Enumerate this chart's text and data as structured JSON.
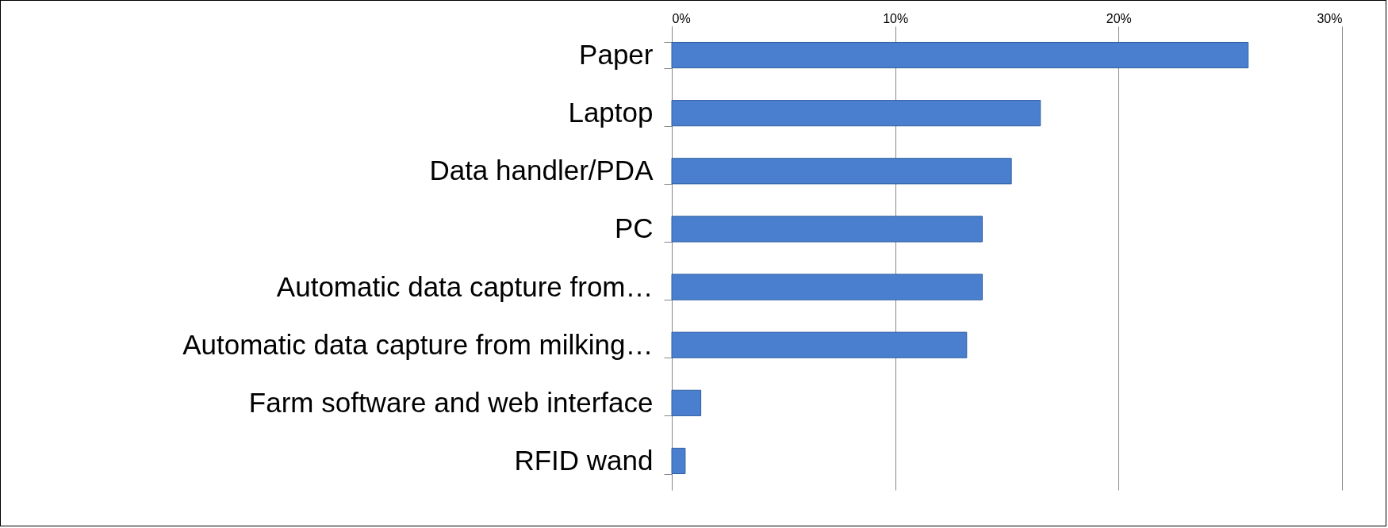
{
  "chart_data": {
    "type": "bar",
    "orientation": "horizontal",
    "categories": [
      "Paper",
      "Laptop",
      "Data handler/PDA",
      "PC",
      "Automatic data capture from…",
      "Automatic data capture from milking…",
      "Farm software and web interface",
      "RFID wand"
    ],
    "values": [
      25.8,
      16.5,
      15.2,
      13.9,
      13.9,
      13.2,
      1.3,
      0.6
    ],
    "color": "#4a7fcf",
    "xlim": [
      0,
      30
    ],
    "xticks": [
      {
        "value": 0,
        "label": "0%"
      },
      {
        "value": 10,
        "label": "10%"
      },
      {
        "value": 20,
        "label": "20%"
      },
      {
        "value": 30,
        "label": "30%"
      }
    ],
    "grid": "x"
  }
}
